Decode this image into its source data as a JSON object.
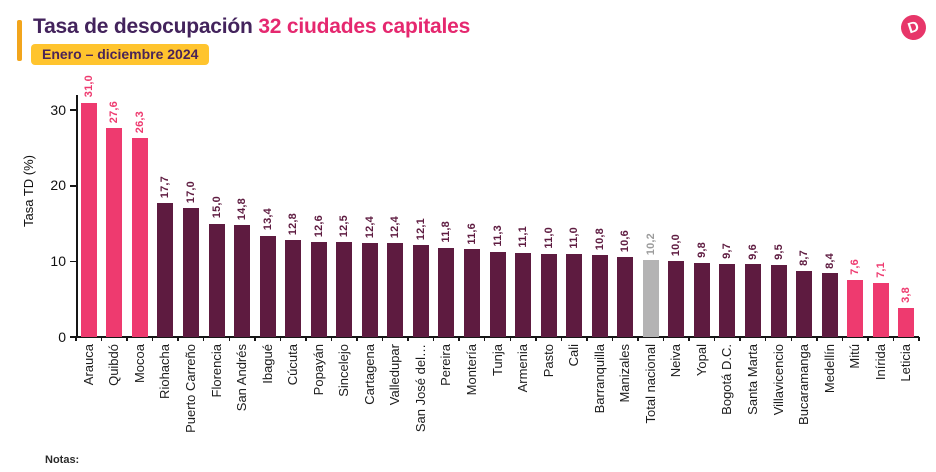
{
  "header": {
    "title_dark": "Tasa de desocupación ",
    "title_pink": "32 ciudades capitales",
    "period_badge": "Enero – diciembre 2024",
    "logo_letter": "D"
  },
  "notes_label": "Notas:",
  "chart_data": {
    "type": "bar",
    "title": "Tasa de desocupación 32 ciudades capitales",
    "subtitle": "Enero – diciembre 2024",
    "ylabel": "Tasa TD (%)",
    "xlabel": "",
    "ylim": [
      0,
      32
    ],
    "yticks": [
      0,
      10,
      20,
      30
    ],
    "grid": false,
    "legend_position": "none",
    "categories": [
      "Arauca",
      "Quibdó",
      "Mocoa",
      "Riohacha",
      "Puerto Carreño",
      "Florencia",
      "San Andrés",
      "Ibagué",
      "Cúcuta",
      "Popayán",
      "Sincelejo",
      "Cartagena",
      "Valledupar",
      "San José del…",
      "Pereira",
      "Montería",
      "Tunja",
      "Armenia",
      "Pasto",
      "Cali",
      "Barranquilla",
      "Manizales",
      "Total nacional",
      "Neiva",
      "Yopal",
      "Bogotá D.C.",
      "Santa Marta",
      "Villavicencio",
      "Bucaramanga",
      "Medellín",
      "Mitú",
      "Inírida",
      "Leticia"
    ],
    "values": [
      31.0,
      27.6,
      26.3,
      17.7,
      17.0,
      15.0,
      14.8,
      13.4,
      12.8,
      12.6,
      12.5,
      12.4,
      12.4,
      12.1,
      11.8,
      11.6,
      11.3,
      11.1,
      11.0,
      11.0,
      10.8,
      10.6,
      10.2,
      10.0,
      9.8,
      9.7,
      9.6,
      9.5,
      8.7,
      8.4,
      7.6,
      7.1,
      3.8
    ],
    "value_labels": [
      "31,0",
      "27,6",
      "26,3",
      "17,7",
      "17,0",
      "15,0",
      "14,8",
      "13,4",
      "12,8",
      "12,6",
      "12,5",
      "12,4",
      "12,4",
      "12,1",
      "11,8",
      "11,6",
      "11,3",
      "11,1",
      "11,0",
      "11,0",
      "10,8",
      "10,6",
      "10,2",
      "10,0",
      "9,8",
      "9,7",
      "9,6",
      "9,5",
      "8,7",
      "8,4",
      "7,6",
      "7,1",
      "3,8"
    ],
    "bar_color_keys": [
      "pink",
      "pink",
      "pink",
      "dark",
      "dark",
      "dark",
      "dark",
      "dark",
      "dark",
      "dark",
      "dark",
      "dark",
      "dark",
      "dark",
      "dark",
      "dark",
      "dark",
      "dark",
      "dark",
      "dark",
      "dark",
      "dark",
      "gray",
      "dark",
      "dark",
      "dark",
      "dark",
      "dark",
      "dark",
      "dark",
      "pink",
      "pink",
      "pink"
    ],
    "palette": {
      "pink": "#EE3A6F",
      "dark": "#5E1B40",
      "gray": "#B4B3B4"
    },
    "label_palette": {
      "pink": "#EE3A6F",
      "dark": "#5E1B40",
      "gray": "#9C9C9C"
    }
  }
}
